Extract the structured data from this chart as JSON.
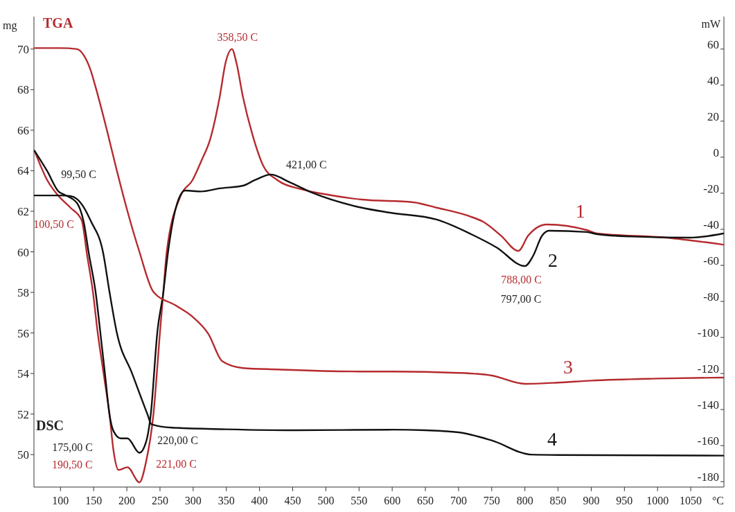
{
  "chart_data": {
    "type": "line",
    "xlabel": "°C",
    "ylabel": "mg",
    "y2label": "mW",
    "xlim": [
      60,
      1100
    ],
    "ylim": [
      48.4,
      71.6
    ],
    "y2lim": [
      -183,
      78
    ],
    "xticks": [
      100,
      150,
      200,
      250,
      300,
      350,
      400,
      450,
      500,
      550,
      600,
      650,
      700,
      750,
      800,
      850,
      900,
      950,
      1000,
      1050
    ],
    "yticks": [
      50,
      52,
      54,
      56,
      58,
      60,
      62,
      64,
      66,
      68,
      70
    ],
    "y2ticks": [
      -180,
      -160,
      -140,
      -120,
      -100,
      -80,
      -60,
      -40,
      -20,
      0,
      20,
      40,
      60
    ],
    "series": [
      {
        "name": "1",
        "color": "#b52a2e",
        "axis": "y2",
        "x": [
          61,
          80,
          97,
          115,
          132,
          140,
          149,
          156,
          165,
          174,
          180,
          187.5,
          201,
          219,
          229,
          240,
          250,
          255,
          260,
          281,
          299,
          312,
          326,
          340,
          349,
          358.5,
          365,
          375,
          389,
          406,
          427,
          462,
          497,
          554,
          632,
          667,
          716,
          737,
          764,
          790,
          805,
          833,
          893,
          909,
          1013,
          1099
        ],
        "values": [
          3.5,
          -12.7,
          -21.5,
          -28,
          -35,
          -54,
          -75,
          -97,
          -120,
          -143,
          -163,
          -173.5,
          -172,
          -180.4,
          -169,
          -143,
          -97,
          -75,
          -53,
          -21.5,
          -12.7,
          -2.3,
          10.4,
          33.5,
          52.7,
          60,
          52.7,
          33.5,
          13,
          -5,
          -12.7,
          -17.7,
          -20.4,
          -23.5,
          -25,
          -28,
          -32.7,
          -35.8,
          -43.5,
          -52,
          -43.5,
          -37.3,
          -40.4,
          -42.3,
          -44.6,
          -48.5
        ]
      },
      {
        "name": "2",
        "color": "#111111",
        "axis": "y2",
        "x": [
          61,
          80,
          97,
          107,
          125,
          135,
          143,
          153,
          160,
          167,
          174,
          180,
          191,
          201,
          219,
          229,
          236,
          246,
          255,
          262,
          274,
          288,
          312,
          340,
          375,
          393,
          417,
          445,
          479,
          554,
          597,
          667,
          719,
          757,
          800,
          812,
          826,
          836,
          893,
          909,
          961,
          1049,
          1099
        ],
        "values": [
          3.5,
          -7.7,
          -19,
          -21,
          -25.5,
          -36,
          -54,
          -75,
          -97,
          -120,
          -143,
          -152,
          -156,
          -156,
          -164,
          -158,
          -143,
          -97,
          -75,
          -53,
          -28,
          -18.5,
          -19,
          -17.3,
          -15.8,
          -12.7,
          -9.6,
          -13.8,
          -19.6,
          -28,
          -30.8,
          -34.6,
          -42.7,
          -50,
          -60.4,
          -55,
          -43.5,
          -40.8,
          -41.5,
          -42.7,
          -44,
          -44.6,
          -42.3
        ]
      },
      {
        "name": "3",
        "color": "#b52a2e",
        "x": [
          61,
          100,
          125,
          135,
          145,
          154,
          170,
          185,
          201,
          219,
          240,
          274,
          299,
          323,
          344,
          375,
          427,
          550,
          600,
          700,
          750,
          800,
          850,
          900,
          1000,
          1099
        ],
        "values": [
          70.05,
          70.05,
          70,
          69.7,
          69,
          68,
          66,
          64,
          62,
          60,
          58.03,
          57.35,
          56.8,
          55.95,
          54.6,
          54.27,
          54.2,
          54.1,
          54.1,
          54.03,
          53.9,
          53.49,
          53.55,
          53.65,
          53.75,
          53.8
        ]
      },
      {
        "name": "4",
        "color": "#111111",
        "x": [
          61,
          100,
          115,
          125,
          135,
          146,
          164,
          174,
          185,
          208,
          231,
          237,
          268,
          350,
          450,
          600,
          650,
          700,
          750,
          810,
          850,
          1099
        ],
        "values": [
          62.78,
          62.78,
          62.75,
          62.6,
          62.2,
          61.5,
          60,
          58,
          56,
          54,
          52,
          51.5,
          51.33,
          51.25,
          51.2,
          51.23,
          51.2,
          51.1,
          50.7,
          50,
          49.98,
          49.95
        ]
      }
    ],
    "annotations": [
      "TGA",
      {
        "text": "358,50 C",
        "x": 358.5,
        "y": 70.03
      },
      {
        "text": "421,00 C",
        "x": 417,
        "y": 63.85
      },
      {
        "text": "99,50 C",
        "x": 100,
        "y": 62.92
      },
      {
        "text": "100,50 C",
        "x": 100,
        "y": 62.55
      },
      "DSC",
      {
        "text": "175,00 C",
        "x": 175,
        "y": 50.92
      },
      {
        "text": "190,50 C",
        "x": 190.5,
        "y": 49.28
      },
      {
        "text": "220,00 C",
        "x": 220,
        "y": 50.14
      },
      {
        "text": "221,00 C",
        "x": 221,
        "y": 48.67
      },
      {
        "text": "788,00 C",
        "x": 788,
        "y": 60.09
      },
      {
        "text": "797,00 C",
        "x": 797,
        "y": 59.33
      }
    ]
  }
}
